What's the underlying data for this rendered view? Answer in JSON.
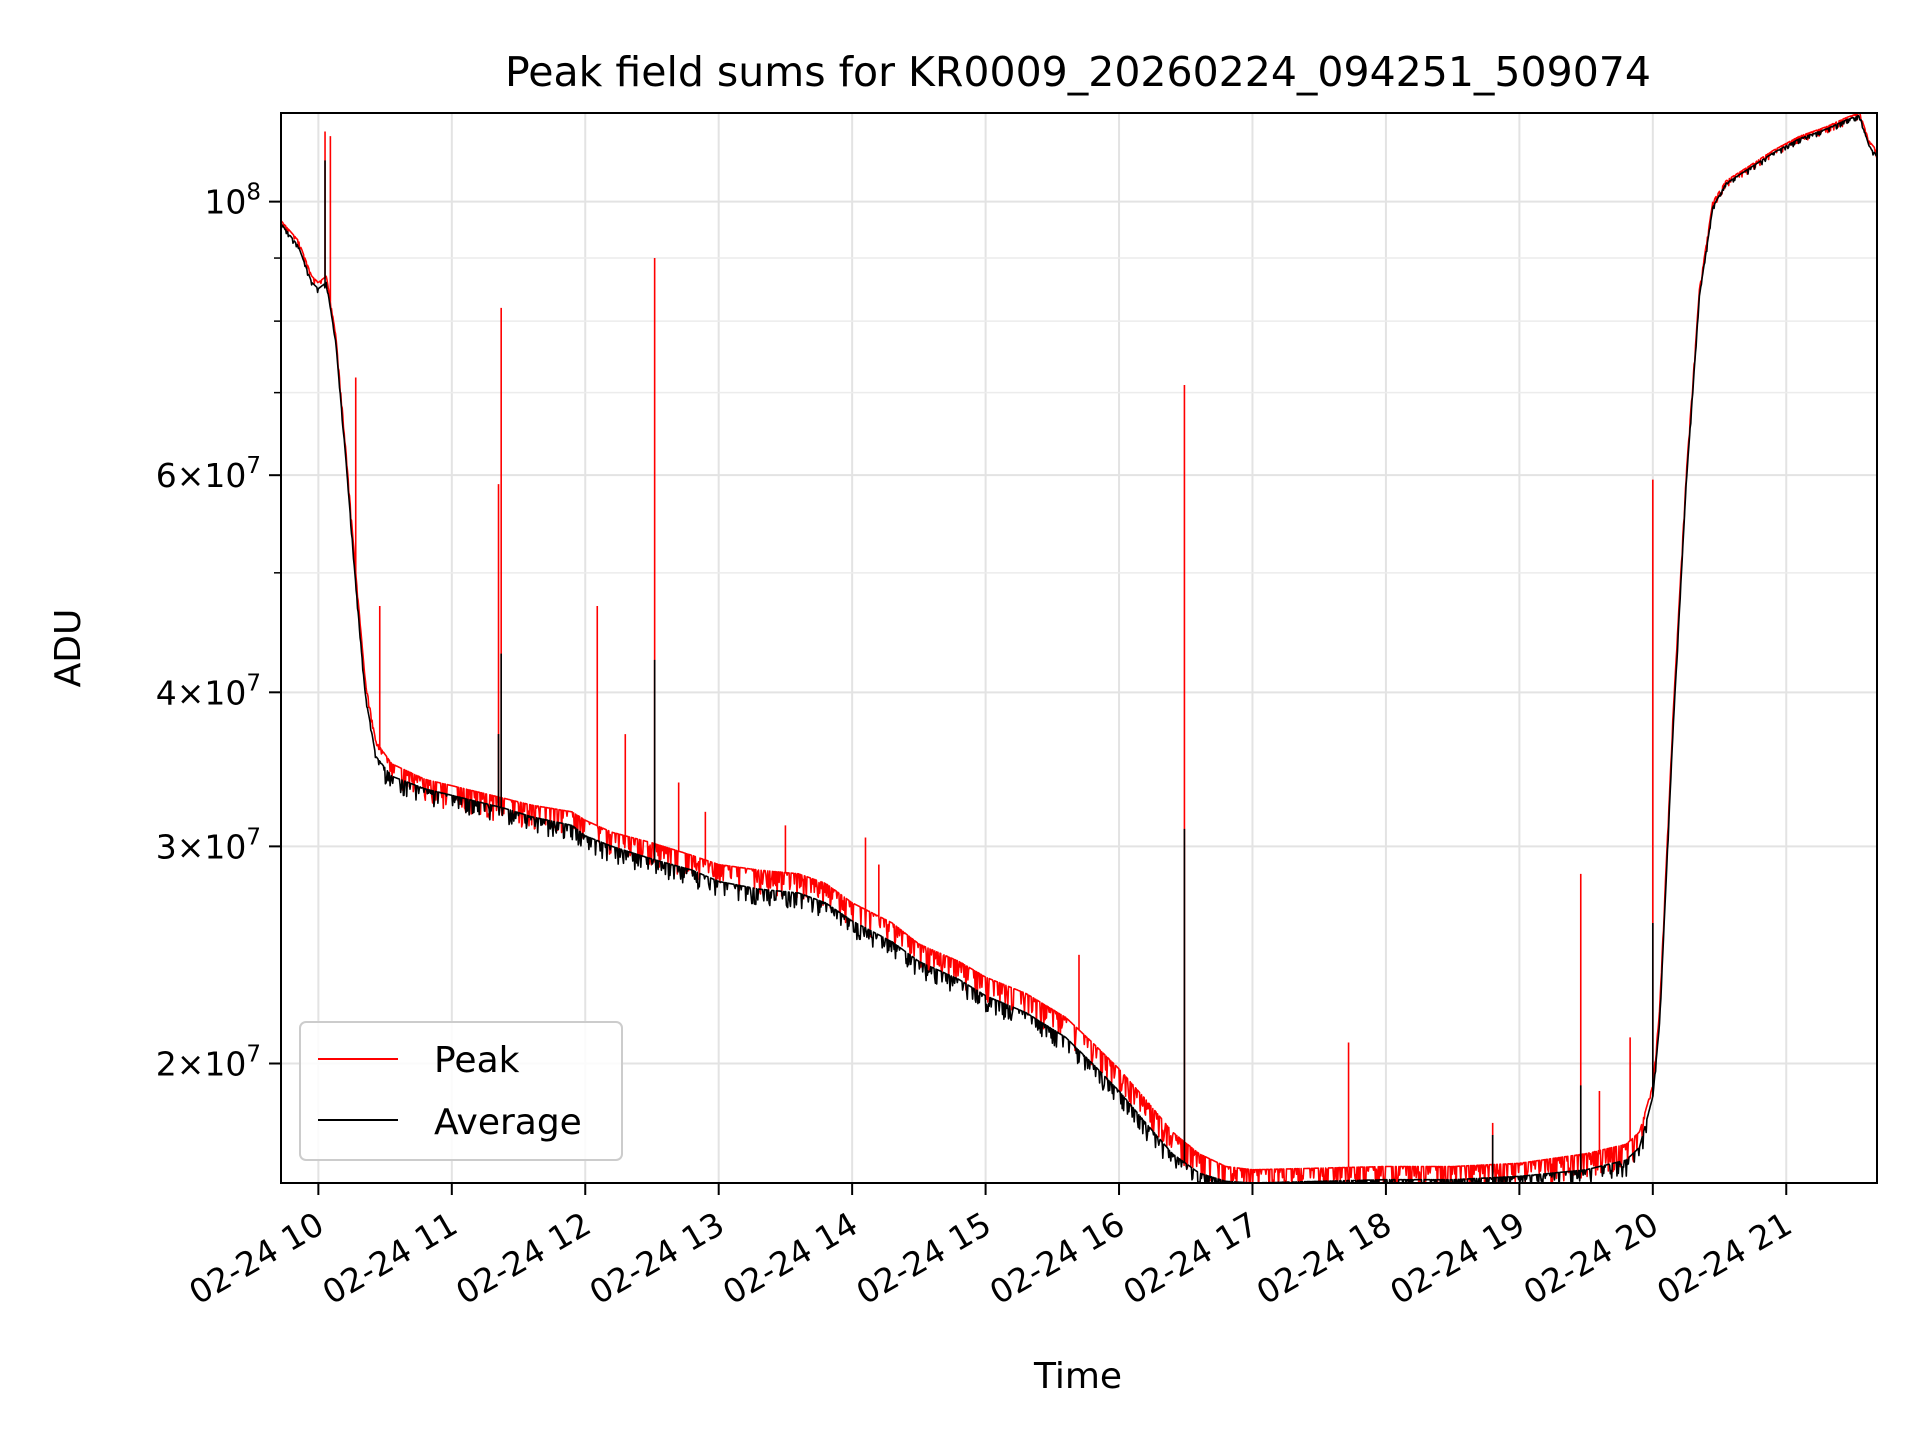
{
  "chart_data": {
    "type": "line",
    "title": "Peak field sums for KR0009_20260224_094251_509074",
    "xlabel": "Time",
    "ylabel": "ADU",
    "yscale": "log",
    "ylim": [
      16000000,
      118000000
    ],
    "xlim_hours": [
      9.72,
      21.68
    ],
    "grid": true,
    "legend_position": "lower-left",
    "x_ticks": [
      {
        "hour": 10,
        "label": "02-24 10"
      },
      {
        "hour": 11,
        "label": "02-24 11"
      },
      {
        "hour": 12,
        "label": "02-24 12"
      },
      {
        "hour": 13,
        "label": "02-24 13"
      },
      {
        "hour": 14,
        "label": "02-24 14"
      },
      {
        "hour": 15,
        "label": "02-24 15"
      },
      {
        "hour": 16,
        "label": "02-24 16"
      },
      {
        "hour": 17,
        "label": "02-24 17"
      },
      {
        "hour": 18,
        "label": "02-24 18"
      },
      {
        "hour": 19,
        "label": "02-24 19"
      },
      {
        "hour": 20,
        "label": "02-24 20"
      },
      {
        "hour": 21,
        "label": "02-24 21"
      }
    ],
    "y_ticks": [
      {
        "value": 20000000,
        "mant": "2",
        "exp": "7"
      },
      {
        "value": 30000000,
        "mant": "3",
        "exp": "7"
      },
      {
        "value": 40000000,
        "mant": "4",
        "exp": "7"
      },
      {
        "value": 60000000,
        "mant": "6",
        "exp": "7"
      },
      {
        "value": 100000000,
        "mant": "",
        "exp": "8"
      }
    ],
    "y_minor_ticks": [
      50000000,
      70000000,
      80000000,
      90000000
    ],
    "series": [
      {
        "name": "Peak",
        "color": "#ff0000",
        "baseline": [
          [
            9.72,
            96500000
          ],
          [
            9.85,
            93000000
          ],
          [
            9.95,
            87000000
          ],
          [
            10.0,
            86000000
          ],
          [
            10.06,
            87000000
          ],
          [
            10.13,
            78000000
          ],
          [
            10.2,
            64000000
          ],
          [
            10.28,
            50000000
          ],
          [
            10.35,
            41000000
          ],
          [
            10.43,
            36500000
          ],
          [
            10.55,
            35000000
          ],
          [
            10.8,
            34000000
          ],
          [
            11.0,
            33600000
          ],
          [
            11.2,
            33200000
          ],
          [
            11.4,
            32800000
          ],
          [
            11.6,
            32400000
          ],
          [
            11.9,
            32000000
          ],
          [
            12.0,
            31500000
          ],
          [
            12.2,
            30800000
          ],
          [
            12.5,
            30200000
          ],
          [
            12.8,
            29500000
          ],
          [
            13.0,
            29000000
          ],
          [
            13.3,
            28700000
          ],
          [
            13.6,
            28500000
          ],
          [
            13.8,
            28000000
          ],
          [
            14.0,
            27000000
          ],
          [
            14.3,
            26000000
          ],
          [
            14.5,
            25000000
          ],
          [
            14.8,
            24200000
          ],
          [
            15.0,
            23500000
          ],
          [
            15.3,
            22800000
          ],
          [
            15.6,
            21800000
          ],
          [
            15.8,
            20800000
          ],
          [
            16.0,
            19800000
          ],
          [
            16.2,
            18700000
          ],
          [
            16.4,
            17600000
          ],
          [
            16.6,
            16900000
          ],
          [
            16.8,
            16500000
          ],
          [
            17.0,
            16400000
          ],
          [
            17.5,
            16450000
          ],
          [
            18.0,
            16500000
          ],
          [
            18.5,
            16500000
          ],
          [
            19.0,
            16600000
          ],
          [
            19.5,
            16900000
          ],
          [
            19.8,
            17200000
          ],
          [
            19.9,
            17600000
          ],
          [
            20.0,
            19200000
          ],
          [
            20.05,
            22000000
          ],
          [
            20.15,
            38000000
          ],
          [
            20.25,
            60000000
          ],
          [
            20.35,
            85000000
          ],
          [
            20.45,
            100000000
          ],
          [
            20.55,
            104000000
          ],
          [
            20.7,
            106500000
          ],
          [
            20.9,
            110000000
          ],
          [
            21.1,
            113000000
          ],
          [
            21.3,
            115000000
          ],
          [
            21.45,
            117000000
          ],
          [
            21.55,
            118000000
          ],
          [
            21.62,
            112000000
          ],
          [
            21.68,
            110000000
          ]
        ],
        "spikes": [
          [
            10.05,
            114000000
          ],
          [
            10.09,
            113000000
          ],
          [
            10.28,
            72000000
          ],
          [
            10.46,
            47000000
          ],
          [
            11.37,
            82000000
          ],
          [
            11.35,
            59000000
          ],
          [
            12.09,
            47000000
          ],
          [
            12.3,
            37000000
          ],
          [
            12.52,
            90000000
          ],
          [
            12.7,
            33800000
          ],
          [
            12.9,
            32000000
          ],
          [
            13.5,
            31200000
          ],
          [
            14.1,
            30500000
          ],
          [
            14.2,
            29000000
          ],
          [
            15.7,
            24500000
          ],
          [
            16.49,
            71000000
          ],
          [
            17.72,
            20800000
          ],
          [
            18.8,
            17900000
          ],
          [
            19.46,
            28500000
          ],
          [
            19.6,
            19000000
          ],
          [
            19.83,
            21000000
          ],
          [
            20.0,
            59500000
          ]
        ]
      },
      {
        "name": "Average",
        "color": "#000000",
        "baseline": [
          [
            9.72,
            96000000
          ],
          [
            9.85,
            92000000
          ],
          [
            9.95,
            86000000
          ],
          [
            10.0,
            85000000
          ],
          [
            10.06,
            86000000
          ],
          [
            10.13,
            77000000
          ],
          [
            10.2,
            63000000
          ],
          [
            10.28,
            49000000
          ],
          [
            10.35,
            40000000
          ],
          [
            10.43,
            35500000
          ],
          [
            10.55,
            34200000
          ],
          [
            10.8,
            33400000
          ],
          [
            11.0,
            33000000
          ],
          [
            11.2,
            32600000
          ],
          [
            11.4,
            32200000
          ],
          [
            11.6,
            31700000
          ],
          [
            11.9,
            31200000
          ],
          [
            12.0,
            30600000
          ],
          [
            12.2,
            30000000
          ],
          [
            12.5,
            29300000
          ],
          [
            12.8,
            28700000
          ],
          [
            13.0,
            28100000
          ],
          [
            13.3,
            27700000
          ],
          [
            13.6,
            27500000
          ],
          [
            13.8,
            27000000
          ],
          [
            14.0,
            26100000
          ],
          [
            14.3,
            25100000
          ],
          [
            14.5,
            24200000
          ],
          [
            14.8,
            23400000
          ],
          [
            15.0,
            22700000
          ],
          [
            15.3,
            22000000
          ],
          [
            15.6,
            21000000
          ],
          [
            15.8,
            20000000
          ],
          [
            16.0,
            19000000
          ],
          [
            16.2,
            17900000
          ],
          [
            16.4,
            16900000
          ],
          [
            16.6,
            16300000
          ],
          [
            16.8,
            16050000
          ],
          [
            17.0,
            16000000
          ],
          [
            17.5,
            16050000
          ],
          [
            18.0,
            16100000
          ],
          [
            18.5,
            16100000
          ],
          [
            19.0,
            16200000
          ],
          [
            19.5,
            16400000
          ],
          [
            19.8,
            16700000
          ],
          [
            19.9,
            17100000
          ],
          [
            20.0,
            18800000
          ],
          [
            20.05,
            21500000
          ],
          [
            20.15,
            37000000
          ],
          [
            20.25,
            59000000
          ],
          [
            20.35,
            84000000
          ],
          [
            20.45,
            99000000
          ],
          [
            20.55,
            103500000
          ],
          [
            20.7,
            106000000
          ],
          [
            20.9,
            109500000
          ],
          [
            21.1,
            112500000
          ],
          [
            21.3,
            114500000
          ],
          [
            21.45,
            116500000
          ],
          [
            21.55,
            117500000
          ],
          [
            21.62,
            111000000
          ],
          [
            21.68,
            109000000
          ]
        ],
        "spikes": [
          [
            10.05,
            108000000
          ],
          [
            11.37,
            43000000
          ],
          [
            11.35,
            37000000
          ],
          [
            12.52,
            42500000
          ],
          [
            16.49,
            31000000
          ],
          [
            20.0,
            26000000
          ],
          [
            19.46,
            19200000
          ],
          [
            18.8,
            17500000
          ]
        ]
      }
    ]
  }
}
